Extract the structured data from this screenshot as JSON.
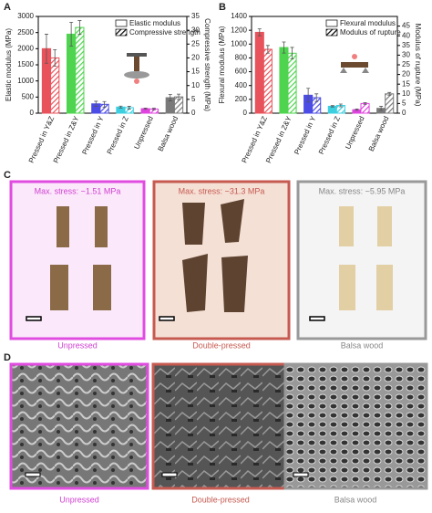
{
  "panel_labels": [
    "A",
    "B",
    "C",
    "D"
  ],
  "chart_data": [
    {
      "type": "bar",
      "categories": [
        "Pressed in Y&Z",
        "Pressed in Z&Y",
        "Pressed in Y",
        "Pressed in Z",
        "Unpressed",
        "Balsa wood"
      ],
      "colors": [
        "#e8535b",
        "#4ed44e",
        "#4b4be6",
        "#3ccfe0",
        "#e043e0",
        "#7a7a7a"
      ],
      "y_label": "Elastic modulus (MPa)",
      "y2_label": "Compressive strength (MPa)",
      "ylim": [
        0,
        3000
      ],
      "yticks": [
        0,
        500,
        1000,
        1500,
        2000,
        2500,
        3000
      ],
      "y2lim": [
        0,
        35
      ],
      "y2ticks": [
        0,
        5,
        10,
        15,
        20,
        25,
        30,
        35
      ],
      "legend": "upper right",
      "series": [
        {
          "name": "Elastic modulus",
          "pattern": "solid",
          "values": [
            2000,
            2450,
            290,
            190,
            140,
            480
          ],
          "errors": [
            450,
            370,
            80,
            30,
            20,
            100
          ]
        },
        {
          "name": "Compressive strength",
          "pattern": "hatch",
          "axis": "y2",
          "values": [
            20,
            31,
            3.2,
            2,
            1.5,
            5.9
          ],
          "errors": [
            3,
            2.5,
            1,
            0.5,
            0.3,
            1
          ]
        }
      ]
    },
    {
      "type": "bar",
      "categories": [
        "Pressed in Y&Z",
        "Pressed in Z&Y",
        "Pressed in Y",
        "Pressed in Z",
        "Unpressed",
        "Balsa wood"
      ],
      "colors": [
        "#e8535b",
        "#4ed44e",
        "#4b4be6",
        "#3ccfe0",
        "#e043e0",
        "#7a7a7a"
      ],
      "y_label": "Flexural modulus (MPa)",
      "y2_label": "Modulus of rupture (MPa)",
      "ylim": [
        0,
        1400
      ],
      "yticks": [
        0,
        200,
        400,
        600,
        800,
        1000,
        1200,
        1400
      ],
      "y2lim": [
        0,
        50
      ],
      "y2ticks": [
        0,
        5,
        10,
        15,
        20,
        25,
        30,
        35,
        40,
        45
      ],
      "legend": "upper right",
      "series": [
        {
          "name": "Flexural modulus",
          "pattern": "solid",
          "values": [
            1170,
            950,
            260,
            100,
            50,
            70
          ],
          "errors": [
            50,
            80,
            100,
            10,
            10,
            30
          ]
        },
        {
          "name": "Modulus of rupture",
          "pattern": "hatch",
          "axis": "y2",
          "values": [
            33,
            31,
            8,
            4,
            5,
            10
          ],
          "errors": [
            2,
            3,
            2,
            0.7,
            0.4,
            0.7
          ]
        }
      ]
    }
  ],
  "photos": {
    "stresses": [
      "Max. stress: ~1.51 MPa",
      "Max. stress: ~31.3 MPa",
      "Max. stress: ~5.95 MPa"
    ],
    "captions": [
      "Unpressed",
      "Double-pressed",
      "Balsa wood"
    ]
  },
  "sem": {
    "captions": [
      "Unpressed",
      "Double-pressed",
      "Balsa wood"
    ]
  }
}
